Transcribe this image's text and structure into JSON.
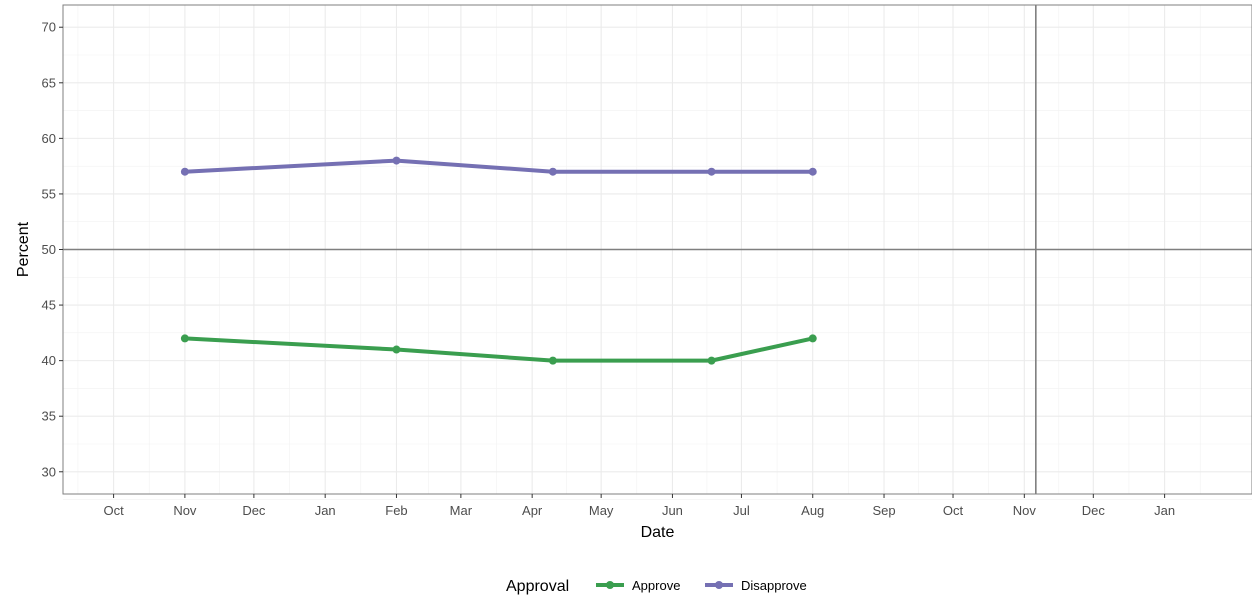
{
  "chart_data": {
    "type": "line",
    "xlabel": "Date",
    "ylabel": "Percent",
    "ylim": [
      28,
      72
    ],
    "xlim": [
      "2017-09-09",
      "2019-02-08"
    ],
    "yticks": [
      30,
      35,
      40,
      45,
      50,
      55,
      60,
      65,
      70
    ],
    "xticks": [
      {
        "date": "2017-10-01",
        "label": "Oct"
      },
      {
        "date": "2017-11-01",
        "label": "Nov"
      },
      {
        "date": "2017-12-01",
        "label": "Dec"
      },
      {
        "date": "2018-01-01",
        "label": "Jan"
      },
      {
        "date": "2018-02-01",
        "label": "Feb"
      },
      {
        "date": "2018-03-01",
        "label": "Mar"
      },
      {
        "date": "2018-04-01",
        "label": "Apr"
      },
      {
        "date": "2018-05-01",
        "label": "May"
      },
      {
        "date": "2018-06-01",
        "label": "Jun"
      },
      {
        "date": "2018-07-01",
        "label": "Jul"
      },
      {
        "date": "2018-08-01",
        "label": "Aug"
      },
      {
        "date": "2018-09-01",
        "label": "Sep"
      },
      {
        "date": "2018-10-01",
        "label": "Oct"
      },
      {
        "date": "2018-11-01",
        "label": "Nov"
      },
      {
        "date": "2018-12-01",
        "label": "Dec"
      },
      {
        "date": "2019-01-01",
        "label": "Jan"
      }
    ],
    "reference_lines": {
      "hline": 50,
      "vline": "2018-11-06"
    },
    "grid": true,
    "legend": {
      "title": "Approval",
      "position": "bottom"
    },
    "series": [
      {
        "name": "Approve",
        "color": "#3a9e4f",
        "points": [
          {
            "x": "2017-11-01",
            "y": 42
          },
          {
            "x": "2018-02-01",
            "y": 41
          },
          {
            "x": "2018-04-10",
            "y": 40
          },
          {
            "x": "2018-06-18",
            "y": 40
          },
          {
            "x": "2018-08-01",
            "y": 42
          }
        ]
      },
      {
        "name": "Disapprove",
        "color": "#7570b3",
        "points": [
          {
            "x": "2017-11-01",
            "y": 57
          },
          {
            "x": "2018-02-01",
            "y": 58
          },
          {
            "x": "2018-04-10",
            "y": 57
          },
          {
            "x": "2018-06-18",
            "y": 57
          },
          {
            "x": "2018-08-01",
            "y": 57
          }
        ]
      }
    ]
  }
}
